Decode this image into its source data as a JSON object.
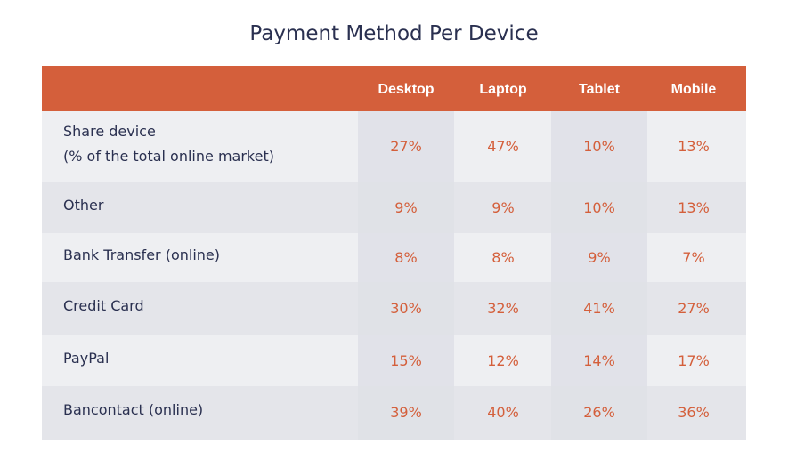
{
  "chart_data": {
    "type": "table",
    "title": "Payment Method Per Device",
    "columns": [
      "Desktop",
      "Laptop",
      "Tablet",
      "Mobile"
    ],
    "rows": [
      {
        "label": [
          "Share device",
          "(% of the total online market)"
        ],
        "values": [
          "27%",
          "47%",
          "10%",
          "13%"
        ]
      },
      {
        "label": [
          "Other"
        ],
        "values": [
          "9%",
          "9%",
          "10%",
          "13%"
        ]
      },
      {
        "label": [
          "Bank Transfer (online)"
        ],
        "values": [
          "8%",
          "8%",
          "9%",
          "7%"
        ]
      },
      {
        "label": [
          "Credit Card"
        ],
        "values": [
          "30%",
          "32%",
          "41%",
          "27%"
        ]
      },
      {
        "label": [
          "PayPal"
        ],
        "values": [
          "15%",
          "12%",
          "14%",
          "17%"
        ]
      },
      {
        "label": [
          "Bancontact  (online)"
        ],
        "values": [
          "39%",
          "40%",
          "26%",
          "36%"
        ]
      }
    ]
  },
  "colors": {
    "header": "#d45f3b",
    "value_text": "#d45f3b",
    "label_text": "#2a3050",
    "row_light": "#eeeff2",
    "row_dark": "#e4e5ea"
  }
}
